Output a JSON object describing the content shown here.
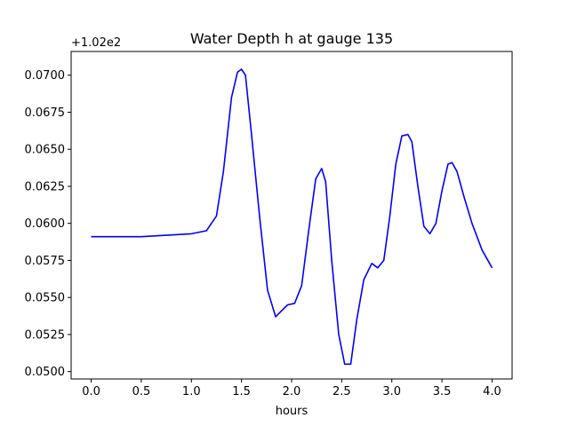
{
  "chart_data": {
    "type": "line",
    "title": "Water Depth h at gauge 135",
    "xlabel": "hours",
    "ylabel": "",
    "offset_label": "+1.02e2",
    "xlim": [
      -0.2,
      4.2
    ],
    "ylim": [
      0.0495,
      0.0716
    ],
    "xticks": [
      0.0,
      0.5,
      1.0,
      1.5,
      2.0,
      2.5,
      3.0,
      3.5,
      4.0
    ],
    "xtick_labels": [
      "0.0",
      "0.5",
      "1.0",
      "1.5",
      "2.0",
      "2.5",
      "3.0",
      "3.5",
      "4.0"
    ],
    "yticks": [
      0.05,
      0.0525,
      0.055,
      0.0575,
      0.06,
      0.0625,
      0.065,
      0.0675,
      0.07
    ],
    "ytick_labels": [
      "0.0500",
      "0.0525",
      "0.0550",
      "0.0575",
      "0.0600",
      "0.0625",
      "0.0650",
      "0.0675",
      "0.0700"
    ],
    "grid": false,
    "legend": "none",
    "series": [
      {
        "color": "#0000ff",
        "x": [
          0.0,
          0.5,
          1.0,
          1.15,
          1.25,
          1.32,
          1.4,
          1.46,
          1.5,
          1.54,
          1.6,
          1.68,
          1.76,
          1.84,
          1.9,
          1.96,
          2.03,
          2.1,
          2.17,
          2.24,
          2.3,
          2.34,
          2.4,
          2.47,
          2.53,
          2.59,
          2.65,
          2.72,
          2.8,
          2.86,
          2.92,
          2.98,
          3.04,
          3.1,
          3.16,
          3.2,
          3.26,
          3.32,
          3.38,
          3.44,
          3.5,
          3.56,
          3.6,
          3.65,
          3.72,
          3.8,
          3.9,
          4.0
        ],
        "y": [
          0.0591,
          0.0591,
          0.0593,
          0.0595,
          0.0605,
          0.0635,
          0.0685,
          0.0702,
          0.0704,
          0.07,
          0.066,
          0.0605,
          0.0555,
          0.0537,
          0.0541,
          0.0545,
          0.0546,
          0.0558,
          0.0595,
          0.063,
          0.0637,
          0.0628,
          0.0575,
          0.0525,
          0.0505,
          0.0505,
          0.0535,
          0.0562,
          0.0573,
          0.057,
          0.0575,
          0.0605,
          0.064,
          0.0659,
          0.066,
          0.0655,
          0.0625,
          0.0598,
          0.0593,
          0.06,
          0.0622,
          0.064,
          0.0641,
          0.0635,
          0.0618,
          0.06,
          0.0582,
          0.057
        ]
      }
    ]
  }
}
